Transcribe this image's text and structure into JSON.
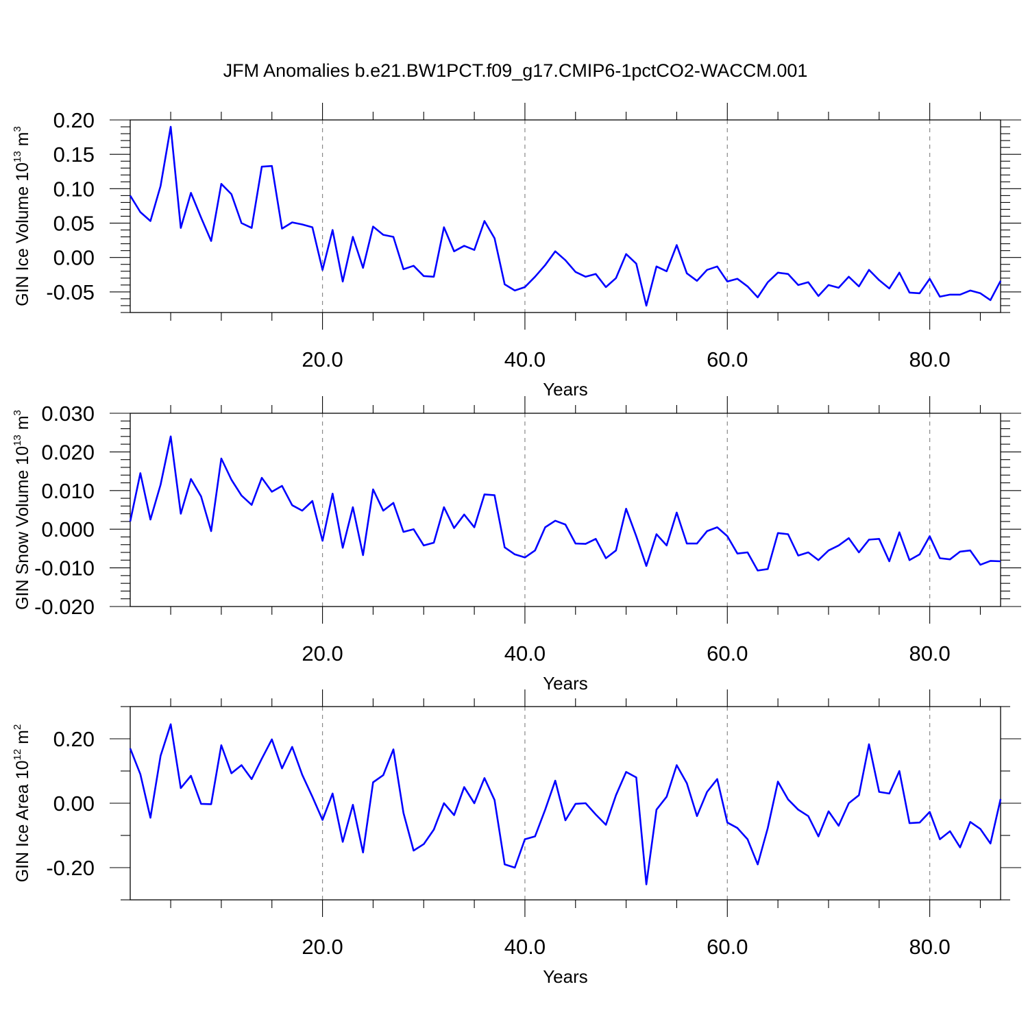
{
  "title": "JFM Anomalies b.e21.BW1PCT.f09_g17.CMIP6-1pctCO2-WACCM.001",
  "chart_data": [
    {
      "type": "line",
      "xlabel": "Years",
      "ylabel": {
        "base": "GIN Ice Volume 10",
        "exp": "13",
        "unit": " m",
        "unit_exp": "3"
      },
      "xlim": [
        1,
        87
      ],
      "ylim": [
        -0.08,
        0.2
      ],
      "xticks": [
        20,
        40,
        60,
        80
      ],
      "xtick_labels": [
        "20.0",
        "40.0",
        "60.0",
        "80.0"
      ],
      "yticks": [
        0.2,
        0.15,
        0.1,
        0.05,
        0.0,
        -0.05
      ],
      "ytick_labels": [
        "0.20",
        "0.15",
        "0.10",
        "0.05",
        "0.00",
        "-0.05"
      ],
      "y_minor_step": 0.01,
      "grid": "vertical dashed at major x ticks",
      "series": [
        {
          "color": "#0000ff",
          "values": [
            0.09,
            0.066,
            0.053,
            0.104,
            0.19,
            0.043,
            0.094,
            0.058,
            0.024,
            0.107,
            0.092,
            0.05,
            0.043,
            0.132,
            0.133,
            0.042,
            0.051,
            0.048,
            0.044,
            -0.018,
            0.04,
            -0.035,
            0.03,
            -0.015,
            0.045,
            0.033,
            0.03,
            -0.017,
            -0.012,
            -0.027,
            -0.028,
            0.044,
            0.009,
            0.017,
            0.011,
            0.053,
            0.028,
            -0.039,
            -0.048,
            -0.043,
            -0.028,
            -0.011,
            0.009,
            -0.004,
            -0.021,
            -0.028,
            -0.024,
            -0.043,
            -0.03,
            0.005,
            -0.009,
            -0.07,
            -0.013,
            -0.02,
            0.018,
            -0.023,
            -0.034,
            -0.018,
            -0.013,
            -0.035,
            -0.031,
            -0.042,
            -0.058,
            -0.036,
            -0.022,
            -0.024,
            -0.04,
            -0.036,
            -0.056,
            -0.04,
            -0.044,
            -0.028,
            -0.042,
            -0.018,
            -0.033,
            -0.045,
            -0.022,
            -0.051,
            -0.052,
            -0.031,
            -0.057,
            -0.054,
            -0.054,
            -0.048,
            -0.052,
            -0.062,
            -0.034
          ]
        }
      ]
    },
    {
      "type": "line",
      "xlabel": "Years",
      "ylabel": {
        "base": "GIN Snow Volume 10",
        "exp": "13",
        "unit": " m",
        "unit_exp": "3"
      },
      "xlim": [
        1,
        87
      ],
      "ylim": [
        -0.02,
        0.03
      ],
      "xticks": [
        20,
        40,
        60,
        80
      ],
      "xtick_labels": [
        "20.0",
        "40.0",
        "60.0",
        "80.0"
      ],
      "yticks": [
        0.03,
        0.02,
        0.01,
        0.0,
        -0.01,
        -0.02
      ],
      "ytick_labels": [
        "0.030",
        "0.020",
        "0.010",
        "0.000",
        "-0.010",
        "-0.020"
      ],
      "y_minor_step": 0.002,
      "grid": "vertical dashed at major x ticks",
      "series": [
        {
          "color": "#0000ff",
          "values": [
            0.002,
            0.0145,
            0.0025,
            0.0115,
            0.024,
            0.004,
            0.013,
            0.0085,
            -0.0005,
            0.0183,
            0.0128,
            0.0087,
            0.0063,
            0.0133,
            0.0097,
            0.0112,
            0.0062,
            0.0048,
            0.0073,
            -0.003,
            0.0092,
            -0.0048,
            0.0057,
            -0.0067,
            0.0103,
            0.0048,
            0.0068,
            -0.0007,
            0.0,
            -0.0042,
            -0.0035,
            0.0057,
            0.0003,
            0.0038,
            0.0005,
            0.009,
            0.0088,
            -0.0047,
            -0.0065,
            -0.0073,
            -0.0055,
            0.0005,
            0.0022,
            0.0012,
            -0.0037,
            -0.0038,
            -0.0025,
            -0.0075,
            -0.0055,
            0.0053,
            -0.0018,
            -0.0095,
            -0.0013,
            -0.0042,
            0.0043,
            -0.0037,
            -0.0037,
            -0.0005,
            0.0005,
            -0.0018,
            -0.0063,
            -0.006,
            -0.0107,
            -0.0103,
            -0.001,
            -0.0013,
            -0.0068,
            -0.006,
            -0.008,
            -0.0055,
            -0.0042,
            -0.0023,
            -0.006,
            -0.0027,
            -0.0025,
            -0.0083,
            -0.0008,
            -0.008,
            -0.0065,
            -0.0018,
            -0.0075,
            -0.0078,
            -0.0058,
            -0.0055,
            -0.0092,
            -0.0082,
            -0.0083
          ]
        }
      ]
    },
    {
      "type": "line",
      "xlabel": "Years",
      "ylabel": {
        "base": "GIN Ice Area 10",
        "exp": "12",
        "unit": " m",
        "unit_exp": "2"
      },
      "xlim": [
        1,
        87
      ],
      "ylim": [
        -0.3,
        0.3
      ],
      "xticks": [
        20,
        40,
        60,
        80
      ],
      "xtick_labels": [
        "20.0",
        "40.0",
        "60.0",
        "80.0"
      ],
      "yticks": [
        0.2,
        0.0,
        -0.2
      ],
      "ytick_labels": [
        "0.20",
        "0.00",
        "-0.20"
      ],
      "y_minor_step": 0.1,
      "grid": "vertical dashed at major x ticks",
      "series": [
        {
          "color": "#0000ff",
          "values": [
            0.17,
            0.09,
            -0.045,
            0.147,
            0.245,
            0.047,
            0.085,
            -0.002,
            -0.003,
            0.18,
            0.093,
            0.118,
            0.075,
            0.138,
            0.198,
            0.108,
            0.175,
            0.088,
            0.02,
            -0.052,
            0.03,
            -0.12,
            -0.005,
            -0.153,
            0.065,
            0.087,
            0.167,
            -0.03,
            -0.147,
            -0.127,
            -0.082,
            0.0,
            -0.037,
            0.05,
            0.0,
            0.078,
            0.01,
            -0.19,
            -0.2,
            -0.112,
            -0.103,
            -0.02,
            0.07,
            -0.053,
            -0.002,
            0.0,
            -0.035,
            -0.067,
            0.025,
            0.097,
            0.08,
            -0.252,
            -0.02,
            0.02,
            0.118,
            0.062,
            -0.04,
            0.035,
            0.075,
            -0.06,
            -0.077,
            -0.112,
            -0.19,
            -0.077,
            0.067,
            0.012,
            -0.02,
            -0.04,
            -0.103,
            -0.025,
            -0.07,
            0.0,
            0.025,
            0.183,
            0.035,
            0.03,
            0.1,
            -0.062,
            -0.06,
            -0.027,
            -0.112,
            -0.087,
            -0.137,
            -0.058,
            -0.08,
            -0.125,
            0.013
          ]
        }
      ]
    }
  ]
}
